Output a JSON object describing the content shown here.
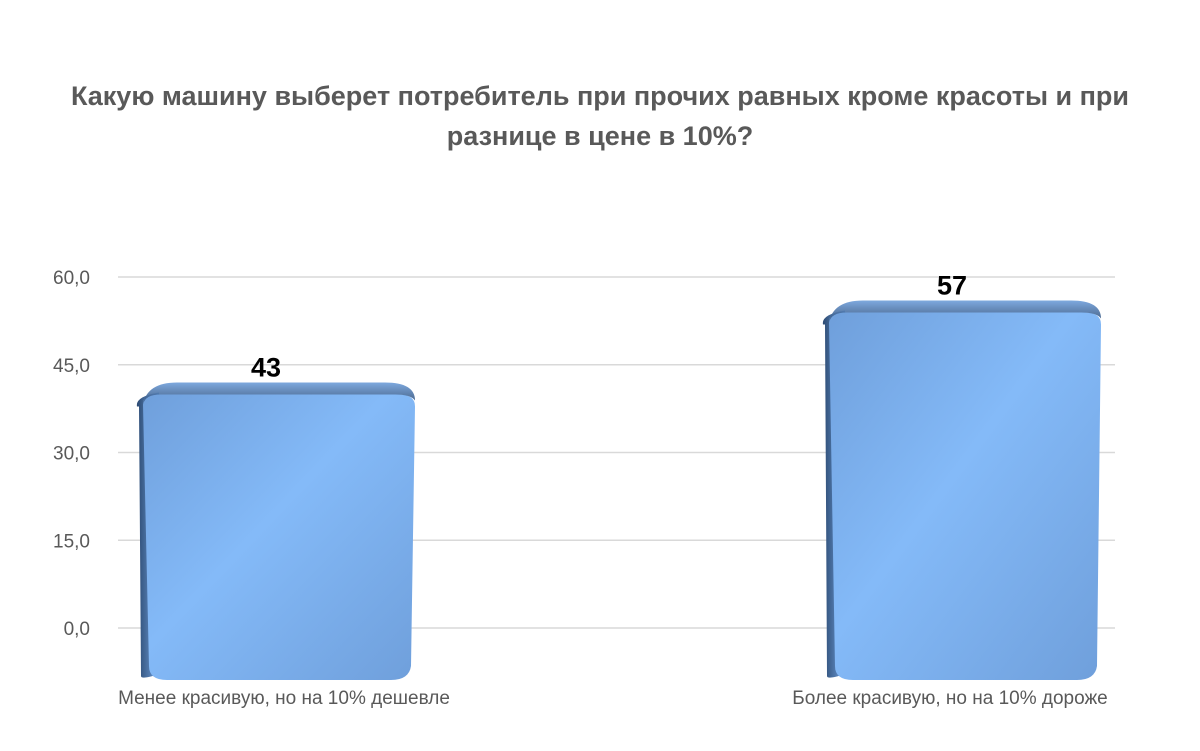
{
  "chart_data": {
    "type": "bar",
    "title_lines": [
      "Какую машину выберет потребитель при прочих равных кроме красоты и при",
      "разнице в цене в 10%?"
    ],
    "categories": [
      "Менее красивую, но на 10% дешевле",
      "Более красивую, но на 10% дороже"
    ],
    "values": [
      43,
      57
    ],
    "data_labels": [
      "43",
      "57"
    ],
    "y_ticks": [
      "0,0",
      "15,0",
      "30,0",
      "45,0",
      "60,0"
    ],
    "ylim": [
      0,
      60
    ],
    "grid": true,
    "legend": "none",
    "bar_color": "#6f9fdb",
    "bar_highlight": "#84baf8",
    "bar_shadow": "#2c4a72"
  }
}
